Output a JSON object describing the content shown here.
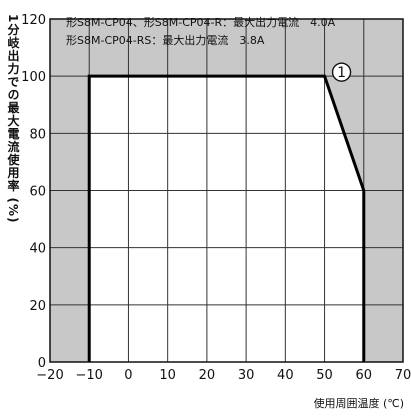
{
  "chart_data": {
    "type": "line",
    "xlabel": "使用周囲温度 (℃)",
    "ylabel": "1分岐出力での最大電流使用率 (%)",
    "xlim": [
      -20,
      70
    ],
    "ylim": [
      0,
      120
    ],
    "x_ticks": [
      -20,
      -10,
      0,
      10,
      20,
      30,
      40,
      50,
      60,
      70
    ],
    "x_tick_labels": [
      "−20",
      "−10",
      "0",
      "10",
      "20",
      "30",
      "40",
      "50",
      "60",
      "70"
    ],
    "y_ticks": [
      0,
      20,
      40,
      60,
      80,
      100,
      120
    ],
    "y_tick_labels": [
      "0",
      "20",
      "40",
      "60",
      "80",
      "100",
      "120"
    ],
    "grid": true,
    "shaded_regions_x": [
      [
        -20,
        -10
      ],
      [
        60,
        70
      ]
    ],
    "shaded_band_y": [
      100,
      120
    ],
    "annotation_lines": [
      "形S8M-CP04、形S8M-CP04-R：最大出力電流　4.0A",
      "形S8M-CP04-RS：最大出力電流　3.8A"
    ],
    "series": [
      {
        "marker": "1",
        "marker_label": "①",
        "x": [
          -10,
          -10,
          50,
          60,
          60
        ],
        "y": [
          0,
          100,
          100,
          60,
          0
        ]
      }
    ]
  }
}
